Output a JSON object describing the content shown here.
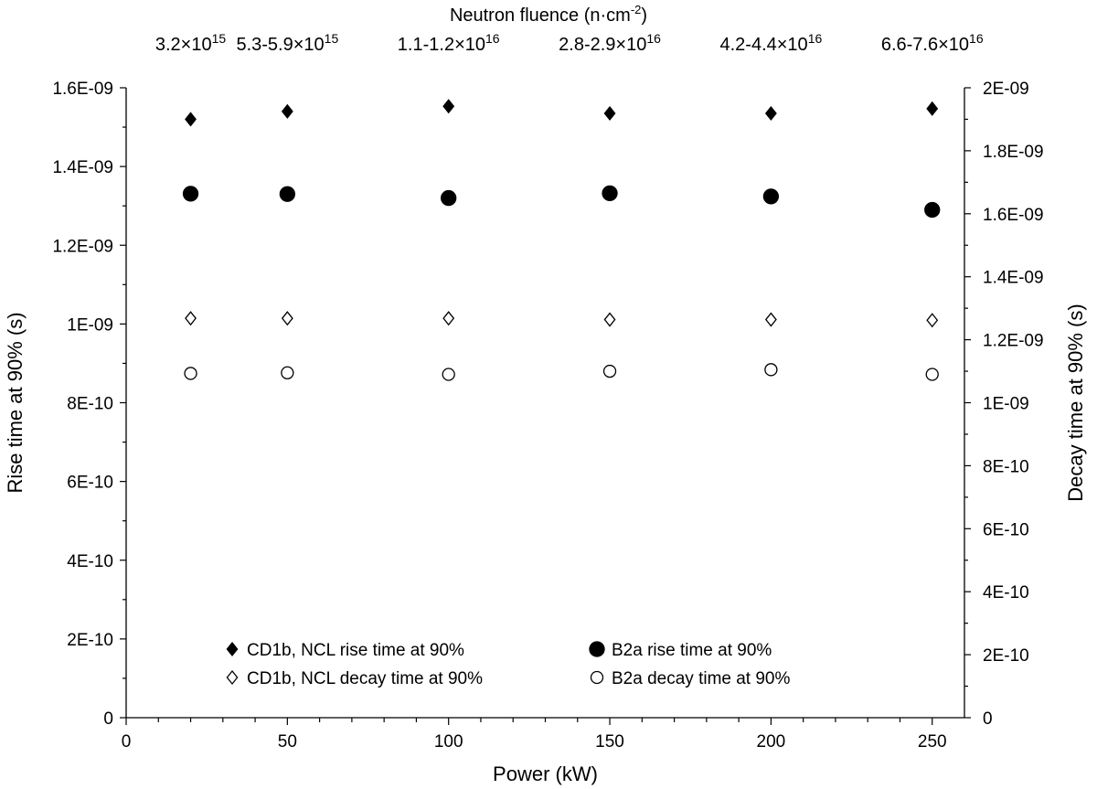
{
  "chart_data": {
    "type": "scatter",
    "title": "",
    "xlabel": "Power (kW)",
    "ylabel": "Rise time at 90% (s)",
    "y2label": "Decay time at 90% (s)",
    "top_axis_title": "Neutron fluence (n·cm-2)",
    "top_axis_title_parts": {
      "text": "Neutron fluence (n·cm",
      "sup": "-2",
      "close": ")"
    },
    "top_tick_labels": [
      {
        "x": 20,
        "base": "3.2×10",
        "exp": "15"
      },
      {
        "x": 50,
        "base": "5.3-5.9×10",
        "exp": "15"
      },
      {
        "x": 100,
        "base": "1.1-1.2×10",
        "exp": "16"
      },
      {
        "x": 150,
        "base": "2.8-2.9×10",
        "exp": "16"
      },
      {
        "x": 200,
        "base": "4.2-4.4×10",
        "exp": "16"
      },
      {
        "x": 250,
        "base": "6.6-7.6×10",
        "exp": "16"
      }
    ],
    "xlim": [
      0,
      260
    ],
    "ylim": [
      0,
      1.6e-09
    ],
    "y2lim": [
      0,
      2e-09
    ],
    "x_ticks": [
      0,
      50,
      100,
      150,
      200,
      250
    ],
    "x_tick_labels": [
      "0",
      "50",
      "100",
      "150",
      "200",
      "250"
    ],
    "y_ticks": [
      0,
      2e-10,
      4e-10,
      6e-10,
      8e-10,
      1e-09,
      1.2e-09,
      1.4e-09,
      1.6e-09
    ],
    "y_tick_labels": [
      "0",
      "2E-10",
      "4E-10",
      "6E-10",
      "8E-10",
      "1E-09",
      "1.2E-09",
      "1.4E-09",
      "1.6E-09"
    ],
    "y2_ticks": [
      0,
      2e-10,
      4e-10,
      6e-10,
      8e-10,
      1e-09,
      1.2e-09,
      1.4e-09,
      1.6e-09,
      1.8e-09,
      2e-09
    ],
    "y2_tick_labels": [
      "0",
      "2E-10",
      "4E-10",
      "6E-10",
      "8E-10",
      "1E-09",
      "1.2E-09",
      "1.4E-09",
      "1.6E-09",
      "1.8E-09",
      "2E-09"
    ],
    "grid": false,
    "legend_position": "bottom-center",
    "series": [
      {
        "name": "CD1b, NCL rise time at 90%",
        "axis": "left",
        "marker": "diamond",
        "filled": true,
        "x": [
          20,
          50,
          100,
          150,
          200,
          250
        ],
        "y": [
          1.52e-09,
          1.54e-09,
          1.553e-09,
          1.535e-09,
          1.535e-09,
          1.547e-09
        ]
      },
      {
        "name": "B2a rise time at 90%",
        "axis": "left",
        "marker": "circle",
        "filled": true,
        "x": [
          20,
          50,
          100,
          150,
          200,
          250
        ],
        "y": [
          1.331e-09,
          1.33e-09,
          1.32e-09,
          1.332e-09,
          1.324e-09,
          1.29e-09
        ]
      },
      {
        "name": "CD1b, NCL decay time at 90%",
        "axis": "right",
        "marker": "diamond",
        "filled": false,
        "x": [
          20,
          50,
          100,
          150,
          200,
          250
        ],
        "y": [
          1.268e-09,
          1.268e-09,
          1.268e-09,
          1.264e-09,
          1.264e-09,
          1.262e-09
        ]
      },
      {
        "name": "B2a decay time at 90%",
        "axis": "right",
        "marker": "circle",
        "filled": false,
        "x": [
          20,
          50,
          100,
          150,
          200,
          250
        ],
        "y": [
          1.093e-09,
          1.095e-09,
          1.09e-09,
          1.1e-09,
          1.105e-09,
          1.09e-09
        ]
      }
    ]
  }
}
